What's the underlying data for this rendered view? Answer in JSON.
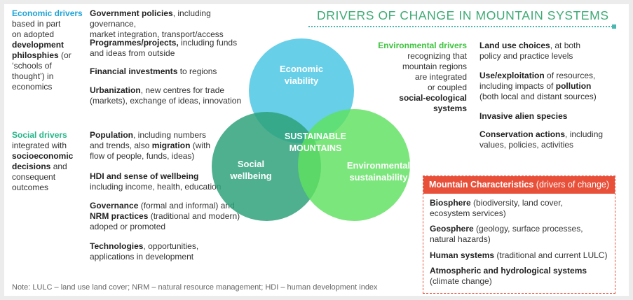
{
  "title": "DRIVERS OF CHANGE IN MOUNTAIN SYSTEMS",
  "colors": {
    "economic": "#5bcbe6",
    "social": "#2fa27a",
    "environmental": "#5ee05e",
    "title": "#3daa75",
    "accent_red": "#e8503a"
  },
  "economic": {
    "heading": "Economic drivers",
    "l1": "based in part",
    "l2": "on adopted",
    "l3": "development",
    "l4": "philosphies",
    "l4b": " (or",
    "l5": "‘schools of",
    "l6": "thought’) in",
    "l7": "economics",
    "items": [
      {
        "bold": "Government policies",
        "rest": ", including governance,",
        "line2": "market integration, transport/access"
      },
      {
        "bold": "Programmes/projects,",
        "rest": " including funds",
        "line2": "and ideas from outside"
      },
      {
        "bold": "Financial investments",
        "rest": " to regions",
        "line2": ""
      },
      {
        "bold": "Urbanization",
        "rest": ", new centres for trade",
        "line2": "(markets), exchange of ideas, innovation"
      }
    ]
  },
  "social": {
    "heading": "Social drivers",
    "l1": "integrated with",
    "l2": "socioeconomic",
    "l3": "decisions",
    "l3b": " and",
    "l4": "consequent",
    "l5": "outcomes",
    "items": [
      {
        "bold": "Population",
        "rest": ", including numbers",
        "line2a": "and trends, also ",
        "line2b": "migration",
        "line2c": " (with",
        "line3": "flow of people, funds, ideas)"
      },
      {
        "bold": "HDI and sense of wellbeing",
        "line2": "including income, health, education"
      },
      {
        "bold": "Governance",
        "rest": " (formal and informal) and",
        "line2b": "NRM practices",
        "line2c": " (traditional and modern)",
        "line3": "adoped or promoted"
      },
      {
        "bold": "Technologies",
        "rest": ", opportunities,",
        "line2": "applications in development"
      }
    ]
  },
  "environmental": {
    "heading": "Environmental drivers",
    "l1": "recognizing  that",
    "l2": "mountain regions",
    "l3": "are integrated",
    "l4": "or coupled",
    "l5": "social-ecological",
    "l6": "systems",
    "items": [
      {
        "bold": "Land use choices",
        "rest": ", at both",
        "line2": "policy and practice levels"
      },
      {
        "bold": "Use/exploitation",
        "rest": " of resources,",
        "line2a": "including impacts of ",
        "line2b": "pollution",
        "line3": "(both local and distant sources)"
      },
      {
        "bold": "Invasive alien species"
      },
      {
        "bold": "Conservation actions",
        "rest": ", including",
        "line2": "values, policies, activities"
      }
    ]
  },
  "venn": {
    "economic_l1": "Economic",
    "economic_l2": "viability",
    "social_l1": "Social",
    "social_l2": "wellbeing",
    "env_l1": "Environmental",
    "env_l2": "sustainability",
    "center_l1": "SUSTAINABLE",
    "center_l2": "MOUNTAINS"
  },
  "mountain": {
    "heading_bold": "Mountain Characteristics",
    "heading_rest": " (drivers of change)",
    "items": [
      {
        "bold": "Biosphere",
        "rest": " (biodiversity, land cover,",
        "line2": "ecosystem services)"
      },
      {
        "bold": "Geosphere",
        "rest": " (geology, surface processes,",
        "line2": "natural hazards)"
      },
      {
        "bold": "Human systems",
        "rest": " (traditional and current LULC)",
        "line2": ""
      },
      {
        "bold": "Atmospheric and hydrological systems",
        "line2": "(climate change)"
      }
    ]
  },
  "note": "Note: LULC – land use land cover; NRM – natural resource management; HDI – human development index"
}
